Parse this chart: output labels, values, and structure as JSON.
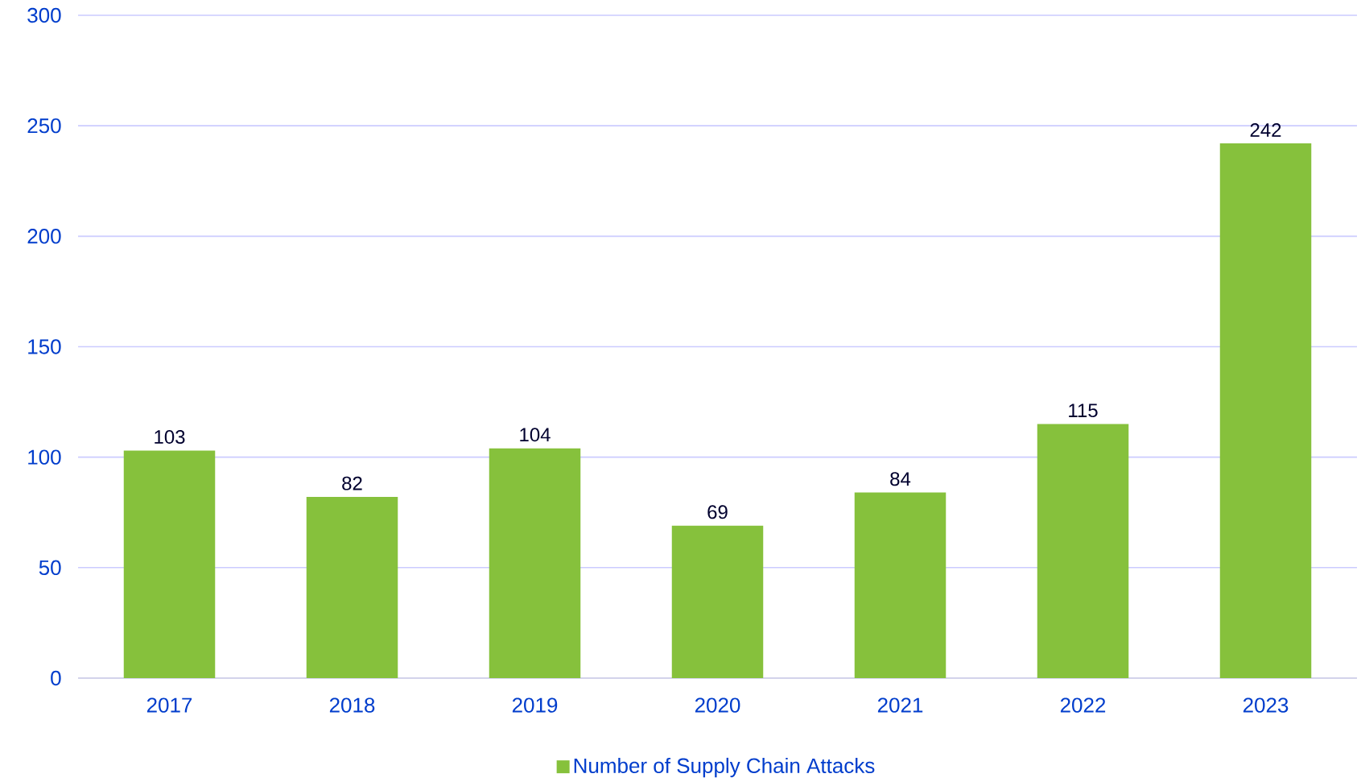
{
  "chart_data": {
    "type": "bar",
    "categories": [
      "2017",
      "2018",
      "2019",
      "2020",
      "2021",
      "2022",
      "2023"
    ],
    "series": [
      {
        "name": "Number of Supply Chain Attacks",
        "color": "#86c13c",
        "values": [
          103,
          82,
          104,
          69,
          84,
          115,
          242
        ]
      }
    ],
    "ylim": [
      0,
      300
    ],
    "yticks": [
      0,
      50,
      100,
      150,
      200,
      250,
      300
    ],
    "grid": "y",
    "legend": "bottom",
    "data_labels": true
  }
}
